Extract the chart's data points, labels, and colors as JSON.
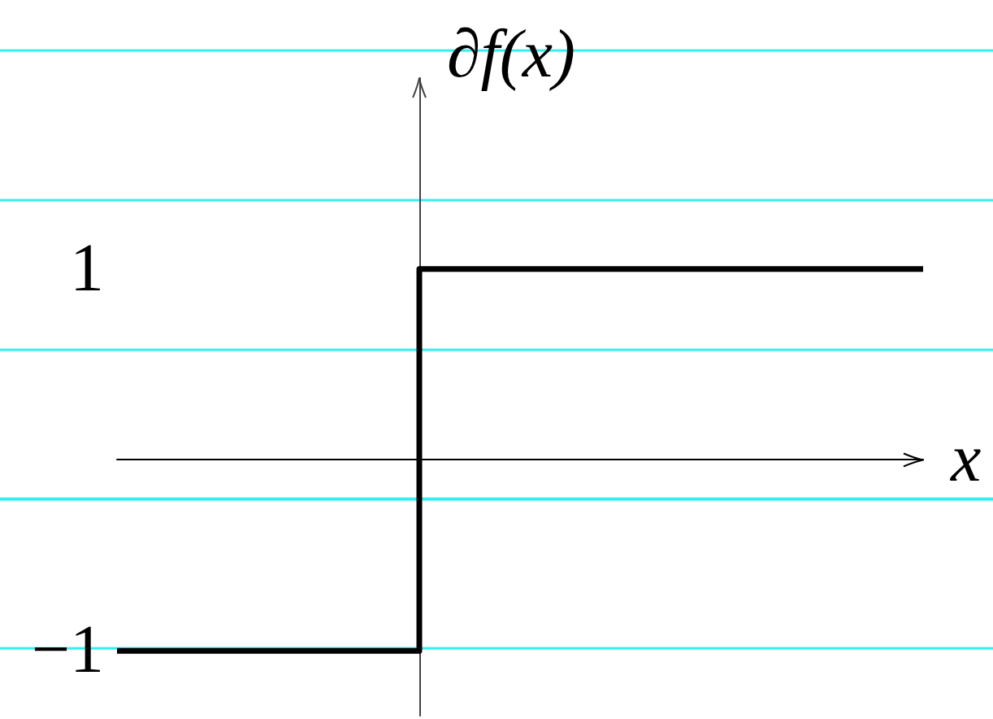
{
  "chart_data": {
    "type": "step",
    "xlabel": "x",
    "ylabel": "∂f(x)",
    "categories": [
      null,
      null,
      null,
      null,
      null,
      null,
      null,
      null,
      null
    ],
    "values": [
      -1,
      -1,
      -1,
      1,
      1,
      1,
      1,
      1,
      1
    ],
    "color": "#000000",
    "ylim": [
      -1.34,
      2
    ],
    "yticks": [
      1,
      {
        "value": -1,
        "label": "−1"
      }
    ],
    "tick_labels": "y",
    "grid": false,
    "marker": "none",
    "line_style": "solid"
  }
}
